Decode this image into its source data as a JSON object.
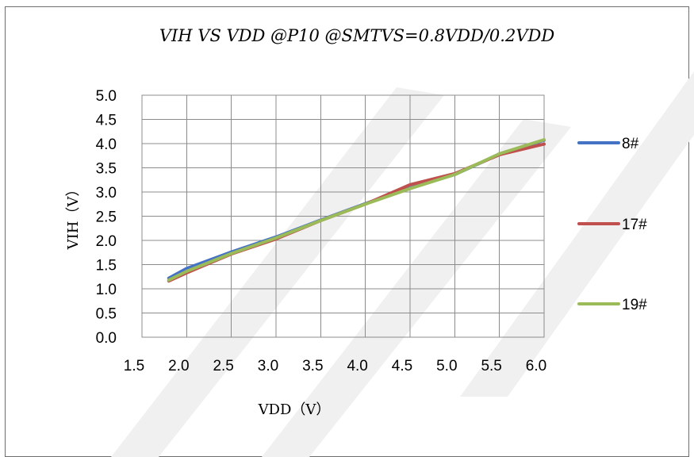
{
  "chart_data": {
    "type": "line",
    "title": "VIH VS VDD @P10 @SMTVS=0.8VDD/0.2VDD",
    "xlabel": "VDD（V）",
    "ylabel": "VIH（V）",
    "xlim": [
      1.5,
      6.0
    ],
    "ylim": [
      0.0,
      5.0
    ],
    "xticks": [
      "1.5",
      "2.0",
      "2.5",
      "3.0",
      "3.5",
      "4.0",
      "4.5",
      "5.0",
      "5.5",
      "6.0"
    ],
    "yticks": [
      "0.0",
      "0.5",
      "1.0",
      "1.5",
      "2.0",
      "2.5",
      "3.0",
      "3.5",
      "4.0",
      "4.5",
      "5.0"
    ],
    "grid": true,
    "legend": "right",
    "series": [
      {
        "name": "8#",
        "color": "#4472C4",
        "x": [
          1.8,
          2.0,
          2.5,
          3.0,
          3.5,
          4.0,
          4.5,
          5.0,
          5.5,
          6.0
        ],
        "y": [
          1.22,
          1.42,
          1.76,
          2.07,
          2.42,
          2.76,
          3.08,
          3.36,
          3.78,
          4.07
        ]
      },
      {
        "name": "17#",
        "color": "#C0504D",
        "x": [
          1.8,
          2.0,
          2.5,
          3.0,
          3.5,
          4.0,
          4.5,
          5.0,
          5.5,
          6.0
        ],
        "y": [
          1.16,
          1.33,
          1.72,
          2.03,
          2.41,
          2.75,
          3.15,
          3.38,
          3.77,
          3.99
        ]
      },
      {
        "name": "19#",
        "color": "#9BBB59",
        "x": [
          1.8,
          2.0,
          2.5,
          3.0,
          3.5,
          4.0,
          4.5,
          5.0,
          5.5,
          6.0
        ],
        "y": [
          1.18,
          1.36,
          1.73,
          2.05,
          2.41,
          2.75,
          3.07,
          3.36,
          3.79,
          4.08
        ]
      }
    ]
  }
}
